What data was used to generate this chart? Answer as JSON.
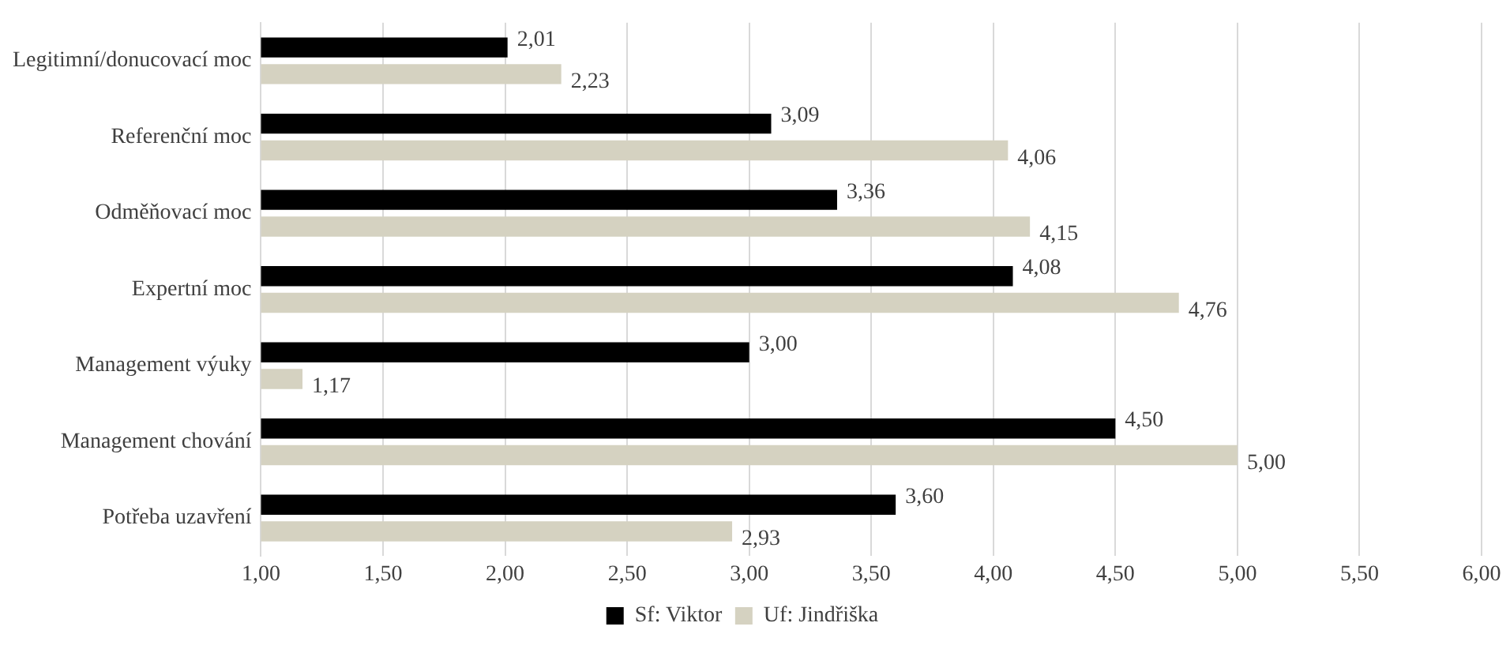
{
  "chart_data": {
    "type": "bar",
    "orientation": "horizontal",
    "categories": [
      "Legitimní/donucovací moc",
      "Referenční moc",
      "Odměňovací moc",
      "Expertní moc",
      "Management výuky",
      "Management chování",
      "Potřeba uzavření"
    ],
    "series": [
      {
        "name": "Sf: Viktor",
        "color": "#000000",
        "values": [
          2.01,
          3.09,
          3.36,
          4.08,
          3.0,
          4.5,
          3.6
        ],
        "value_labels": [
          "2,01",
          "3,09",
          "3,36",
          "4,08",
          "3,00",
          "4,50",
          "3,60"
        ]
      },
      {
        "name": "Uf: Jindřiška",
        "color": "#d5d2c1",
        "values": [
          2.23,
          4.06,
          4.15,
          4.76,
          1.17,
          5.0,
          2.93
        ],
        "value_labels": [
          "2,23",
          "4,06",
          "4,15",
          "4,76",
          "1,17",
          "5,00",
          "2,93"
        ]
      }
    ],
    "xlim": [
      1,
      6
    ],
    "xticks": [
      {
        "value": 1,
        "label": "1,00"
      },
      {
        "value": 1.5,
        "label": "1,50"
      },
      {
        "value": 2,
        "label": "2,00"
      },
      {
        "value": 2.5,
        "label": "2,50"
      },
      {
        "value": 3,
        "label": "3,00"
      },
      {
        "value": 3.5,
        "label": "3,50"
      },
      {
        "value": 4,
        "label": "4,00"
      },
      {
        "value": 4.5,
        "label": "4,50"
      },
      {
        "value": 5,
        "label": "5,00"
      },
      {
        "value": 5.5,
        "label": "5,50"
      },
      {
        "value": 6,
        "label": "6,00"
      }
    ],
    "grid": "x",
    "legend": "bottom"
  }
}
